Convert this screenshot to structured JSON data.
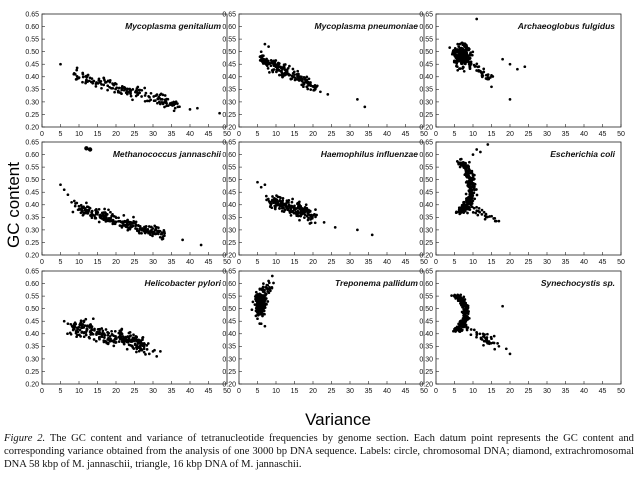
{
  "figure": {
    "ylabel": "GC content",
    "xlabel": "Variance",
    "caption_label": "Figure 2.",
    "caption_text": "The GC content and variance of tetranucleotide frequencies by genome section. Each datum point represents the GC content and corresponding variance obtained from the analysis of one 3000 bp DNA sequence. Labels: circle, chromosomal DNA; diamond, extrachromosomal DNA 58 kbp of M. jannaschii, triangle, 16 kbp DNA of M. jannaschii."
  },
  "chart_data": [
    {
      "type": "scatter",
      "title": "Mycoplasma genitalium",
      "xlim": [
        0,
        50
      ],
      "ylim": [
        0.2,
        0.65
      ],
      "x_ticks": [
        "0",
        "5",
        "10",
        "15",
        "20",
        "25",
        "30",
        "35",
        "40",
        "45",
        "50"
      ],
      "y_ticks": [
        "0.20",
        "0.25",
        "0.30",
        "0.35",
        "0.40",
        "0.45",
        "0.50",
        "0.55",
        "0.60",
        "0.65"
      ],
      "cloud": {
        "n": 170,
        "x": [
          9,
          37
        ],
        "y": [
          0.405,
          0.285
        ],
        "sx": 0.35,
        "sy": 0.012
      },
      "points": [
        {
          "x": 5,
          "y": 0.45
        },
        {
          "x": 11,
          "y": 0.415
        },
        {
          "x": 40,
          "y": 0.27
        },
        {
          "x": 42,
          "y": 0.275
        },
        {
          "x": 48,
          "y": 0.255
        },
        {
          "x": 36,
          "y": 0.275
        }
      ]
    },
    {
      "type": "scatter",
      "title": "Mycoplasma pneumoniae",
      "xlim": [
        0,
        50
      ],
      "ylim": [
        0.2,
        0.65
      ],
      "x_ticks": [
        "0",
        "5",
        "10",
        "15",
        "20",
        "25",
        "30",
        "35",
        "40",
        "45",
        "50"
      ],
      "y_ticks": [
        "0.20",
        "0.25",
        "0.30",
        "0.35",
        "0.40",
        "0.45",
        "0.50",
        "0.55",
        "0.60",
        "0.65"
      ],
      "cloud": {
        "n": 190,
        "x": [
          6,
          21
        ],
        "y": [
          0.47,
          0.355
        ],
        "sx": 0.4,
        "sy": 0.013
      },
      "points": [
        {
          "x": 7,
          "y": 0.53
        },
        {
          "x": 8,
          "y": 0.52
        },
        {
          "x": 6,
          "y": 0.5
        },
        {
          "x": 24,
          "y": 0.33
        },
        {
          "x": 32,
          "y": 0.31
        },
        {
          "x": 34,
          "y": 0.28
        },
        {
          "x": 22,
          "y": 0.34
        }
      ]
    },
    {
      "type": "scatter",
      "title": "Archaeoglobus fulgidus",
      "xlim": [
        0,
        50
      ],
      "ylim": [
        0.2,
        0.65
      ],
      "x_ticks": [
        "0",
        "5",
        "10",
        "15",
        "20",
        "25",
        "30",
        "35",
        "40",
        "45",
        "50"
      ],
      "y_ticks": [
        "0.20",
        "0.25",
        "0.30",
        "0.35",
        "0.40",
        "0.45",
        "0.50",
        "0.55",
        "0.60",
        "0.65"
      ],
      "blob": {
        "n": 190,
        "cx": 7,
        "cy": 0.485,
        "rx": 2.2,
        "ry": 0.045
      },
      "tail": {
        "n": 40,
        "x": [
          8,
          15
        ],
        "y": [
          0.47,
          0.39
        ]
      },
      "points": [
        {
          "x": 11,
          "y": 0.63
        },
        {
          "x": 18,
          "y": 0.47
        },
        {
          "x": 20,
          "y": 0.45
        },
        {
          "x": 22,
          "y": 0.43
        },
        {
          "x": 24,
          "y": 0.44
        },
        {
          "x": 20,
          "y": 0.31
        },
        {
          "x": 15,
          "y": 0.36
        }
      ]
    },
    {
      "type": "scatter",
      "title": "Methanococcus jannaschii",
      "xlim": [
        0,
        50
      ],
      "ylim": [
        0.2,
        0.65
      ],
      "x_ticks": [
        "0",
        "5",
        "10",
        "15",
        "20",
        "25",
        "30",
        "35",
        "40",
        "45",
        "50"
      ],
      "y_ticks": [
        "0.20",
        "0.25",
        "0.30",
        "0.35",
        "0.40",
        "0.45",
        "0.50",
        "0.55",
        "0.60",
        "0.65"
      ],
      "cloud": {
        "n": 260,
        "x": [
          9,
          33
        ],
        "y": [
          0.39,
          0.28
        ],
        "sx": 0.5,
        "sy": 0.012
      },
      "points": [
        {
          "x": 12,
          "y": 0.625,
          "r": 2.2
        },
        {
          "x": 13,
          "y": 0.62,
          "r": 2.2
        },
        {
          "x": 5,
          "y": 0.48
        },
        {
          "x": 6,
          "y": 0.46
        },
        {
          "x": 7,
          "y": 0.44
        },
        {
          "x": 8,
          "y": 0.41
        },
        {
          "x": 38,
          "y": 0.26
        },
        {
          "x": 43,
          "y": 0.24
        }
      ]
    },
    {
      "type": "scatter",
      "title": "Haemophilus influenzae",
      "xlim": [
        0,
        50
      ],
      "ylim": [
        0.2,
        0.65
      ],
      "x_ticks": [
        "0",
        "5",
        "10",
        "15",
        "20",
        "25",
        "30",
        "35",
        "40",
        "45",
        "50"
      ],
      "y_ticks": [
        "0.20",
        "0.25",
        "0.30",
        "0.35",
        "0.40",
        "0.45",
        "0.50",
        "0.55",
        "0.60",
        "0.65"
      ],
      "cloud": {
        "n": 210,
        "x": [
          8,
          20
        ],
        "y": [
          0.42,
          0.355
        ],
        "sx": 0.6,
        "sy": 0.014
      },
      "points": [
        {
          "x": 5,
          "y": 0.49
        },
        {
          "x": 6,
          "y": 0.47
        },
        {
          "x": 7,
          "y": 0.48
        },
        {
          "x": 26,
          "y": 0.31
        },
        {
          "x": 32,
          "y": 0.3
        },
        {
          "x": 36,
          "y": 0.28
        },
        {
          "x": 23,
          "y": 0.33
        }
      ]
    },
    {
      "type": "scatter",
      "title": "Escherichia coli",
      "xlim": [
        0,
        50
      ],
      "ylim": [
        0.2,
        0.65
      ],
      "x_ticks": [
        "0",
        "5",
        "10",
        "15",
        "20",
        "25",
        "30",
        "35",
        "40",
        "45",
        "50"
      ],
      "y_ticks": [
        "0.20",
        "0.25",
        "0.30",
        "0.35",
        "0.40",
        "0.45",
        "0.50",
        "0.55",
        "0.60",
        "0.65"
      ],
      "arc": {
        "n": 280,
        "cx": 4.5,
        "cy": 0.47,
        "rx": 5,
        "ry": 0.11,
        "a0": -1.15,
        "a1": 1.15,
        "sd": 0.6
      },
      "tail": {
        "n": 30,
        "x": [
          7,
          16
        ],
        "y": [
          0.4,
          0.335
        ]
      },
      "points": [
        {
          "x": 10,
          "y": 0.6
        },
        {
          "x": 11,
          "y": 0.62
        },
        {
          "x": 12,
          "y": 0.61
        },
        {
          "x": 14,
          "y": 0.64
        },
        {
          "x": 16,
          "y": 0.335
        },
        {
          "x": 17,
          "y": 0.335
        }
      ]
    },
    {
      "type": "scatter",
      "title": "Helicobacter pylori",
      "xlim": [
        0,
        50
      ],
      "ylim": [
        0.2,
        0.65
      ],
      "x_ticks": [
        "0",
        "5",
        "10",
        "15",
        "20",
        "25",
        "30",
        "35",
        "40",
        "45",
        "50"
      ],
      "y_ticks": [
        "0.20",
        "0.25",
        "0.30",
        "0.35",
        "0.40",
        "0.45",
        "0.50",
        "0.55",
        "0.60",
        "0.65"
      ],
      "cloud": {
        "n": 260,
        "x": [
          8,
          28
        ],
        "y": [
          0.425,
          0.355
        ],
        "sx": 1.0,
        "sy": 0.017
      },
      "points": [
        {
          "x": 6,
          "y": 0.45
        },
        {
          "x": 7,
          "y": 0.44
        },
        {
          "x": 30,
          "y": 0.33
        },
        {
          "x": 31,
          "y": 0.31
        },
        {
          "x": 32,
          "y": 0.33
        },
        {
          "x": 29,
          "y": 0.32
        }
      ]
    },
    {
      "type": "scatter",
      "title": "Treponema pallidum",
      "xlim": [
        0,
        50
      ],
      "ylim": [
        0.2,
        0.65
      ],
      "x_ticks": [
        "0",
        "5",
        "10",
        "15",
        "20",
        "25",
        "30",
        "35",
        "40",
        "45",
        "50"
      ],
      "y_ticks": [
        "0.20",
        "0.25",
        "0.30",
        "0.35",
        "0.40",
        "0.45",
        "0.50",
        "0.55",
        "0.60",
        "0.65"
      ],
      "blob": {
        "n": 180,
        "cx": 5.8,
        "cy": 0.52,
        "rx": 1.4,
        "ry": 0.045
      },
      "tail": {
        "n": 30,
        "x": [
          6,
          9
        ],
        "y": [
          0.56,
          0.6
        ]
      },
      "points": [
        {
          "x": 9,
          "y": 0.63
        },
        {
          "x": 8,
          "y": 0.61
        },
        {
          "x": 7,
          "y": 0.43
        },
        {
          "x": 6,
          "y": 0.44
        },
        {
          "x": 5,
          "y": 0.46
        }
      ]
    },
    {
      "type": "scatter",
      "title": "Synechocystis sp.",
      "xlim": [
        0,
        50
      ],
      "ylim": [
        0.2,
        0.65
      ],
      "x_ticks": [
        "0",
        "5",
        "10",
        "15",
        "20",
        "25",
        "30",
        "35",
        "40",
        "45",
        "50"
      ],
      "y_ticks": [
        "0.20",
        "0.25",
        "0.30",
        "0.35",
        "0.40",
        "0.45",
        "0.50",
        "0.55",
        "0.60",
        "0.65"
      ],
      "arc": {
        "n": 220,
        "cx": 4.5,
        "cy": 0.48,
        "rx": 3.5,
        "ry": 0.07,
        "a0": -1.3,
        "a1": 1.4,
        "sd": 0.5
      },
      "tail": {
        "n": 45,
        "x": [
          7,
          16
        ],
        "y": [
          0.43,
          0.36
        ]
      },
      "points": [
        {
          "x": 18,
          "y": 0.51
        },
        {
          "x": 20,
          "y": 0.32
        },
        {
          "x": 19,
          "y": 0.34
        },
        {
          "x": 17,
          "y": 0.35
        }
      ]
    }
  ]
}
